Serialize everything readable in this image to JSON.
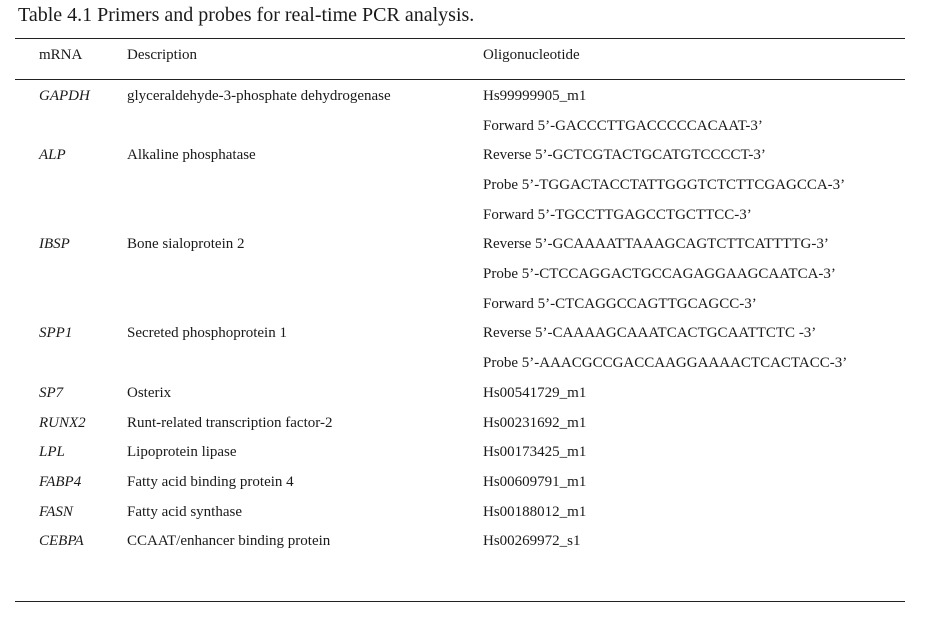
{
  "caption": "Table 4.1 Primers and probes for real-time PCR analysis.",
  "headers": {
    "mrna": "mRNA",
    "description": "Description",
    "oligo": "Oligonucleotide"
  },
  "rows": [
    {
      "mrna": "GAPDH",
      "description": "glyceraldehyde-3-phosphate dehydrogenase",
      "oligo": "Hs99999905_m1"
    },
    {
      "mrna": "",
      "description": "",
      "oligo": "Forward 5’-GACCCTTGACCCCCACAAT-3’"
    },
    {
      "mrna": "ALP",
      "description": "Alkaline phosphatase",
      "oligo": "Reverse 5’-GCTCGTACTGCATGTCCCCT-3’"
    },
    {
      "mrna": "",
      "description": "",
      "oligo": "Probe 5’-TGGACTACCTATTGGGTCTCTTCGAGCCA-3’"
    },
    {
      "mrna": "",
      "description": "",
      "oligo": "Forward 5’-TGCCTTGAGCCTGCTTCC-3’"
    },
    {
      "mrna": "IBSP",
      "description": "Bone sialoprotein 2",
      "oligo": "Reverse 5’-GCAAAATTAAAGCAGTCTTCATTTTG-3’"
    },
    {
      "mrna": "",
      "description": "",
      "oligo": "Probe 5’-CTCCAGGACTGCCAGAGGAAGCAATCA-3’"
    },
    {
      "mrna": "",
      "description": "",
      "oligo": "Forward 5’-CTCAGGCCAGTTGCAGCC-3’"
    },
    {
      "mrna": "SPP1",
      "description": "Secreted phosphoprotein 1",
      "oligo": "Reverse 5’-CAAAAGCAAATCACTGCAATTCTC -3’"
    },
    {
      "mrna": "",
      "description": "",
      "oligo": "Probe 5’-AAACGCCGACCAAGGAAAACTCACTACC-3’"
    },
    {
      "mrna": "SP7",
      "description": "Osterix",
      "oligo": "Hs00541729_m1"
    },
    {
      "mrna": "RUNX2",
      "description": "Runt-related transcription factor-2",
      "oligo": "Hs00231692_m1"
    },
    {
      "mrna": "LPL",
      "description": "Lipoprotein lipase",
      "oligo": "Hs00173425_m1"
    },
    {
      "mrna": "FABP4",
      "description": "Fatty acid binding protein 4",
      "oligo": "Hs00609791_m1"
    },
    {
      "mrna": "FASN",
      "description": "Fatty acid synthase",
      "oligo": "Hs00188012_m1"
    },
    {
      "mrna": "CEBPA",
      "description": "CCAAT/enhancer binding protein",
      "oligo": "Hs00269972_s1"
    }
  ]
}
